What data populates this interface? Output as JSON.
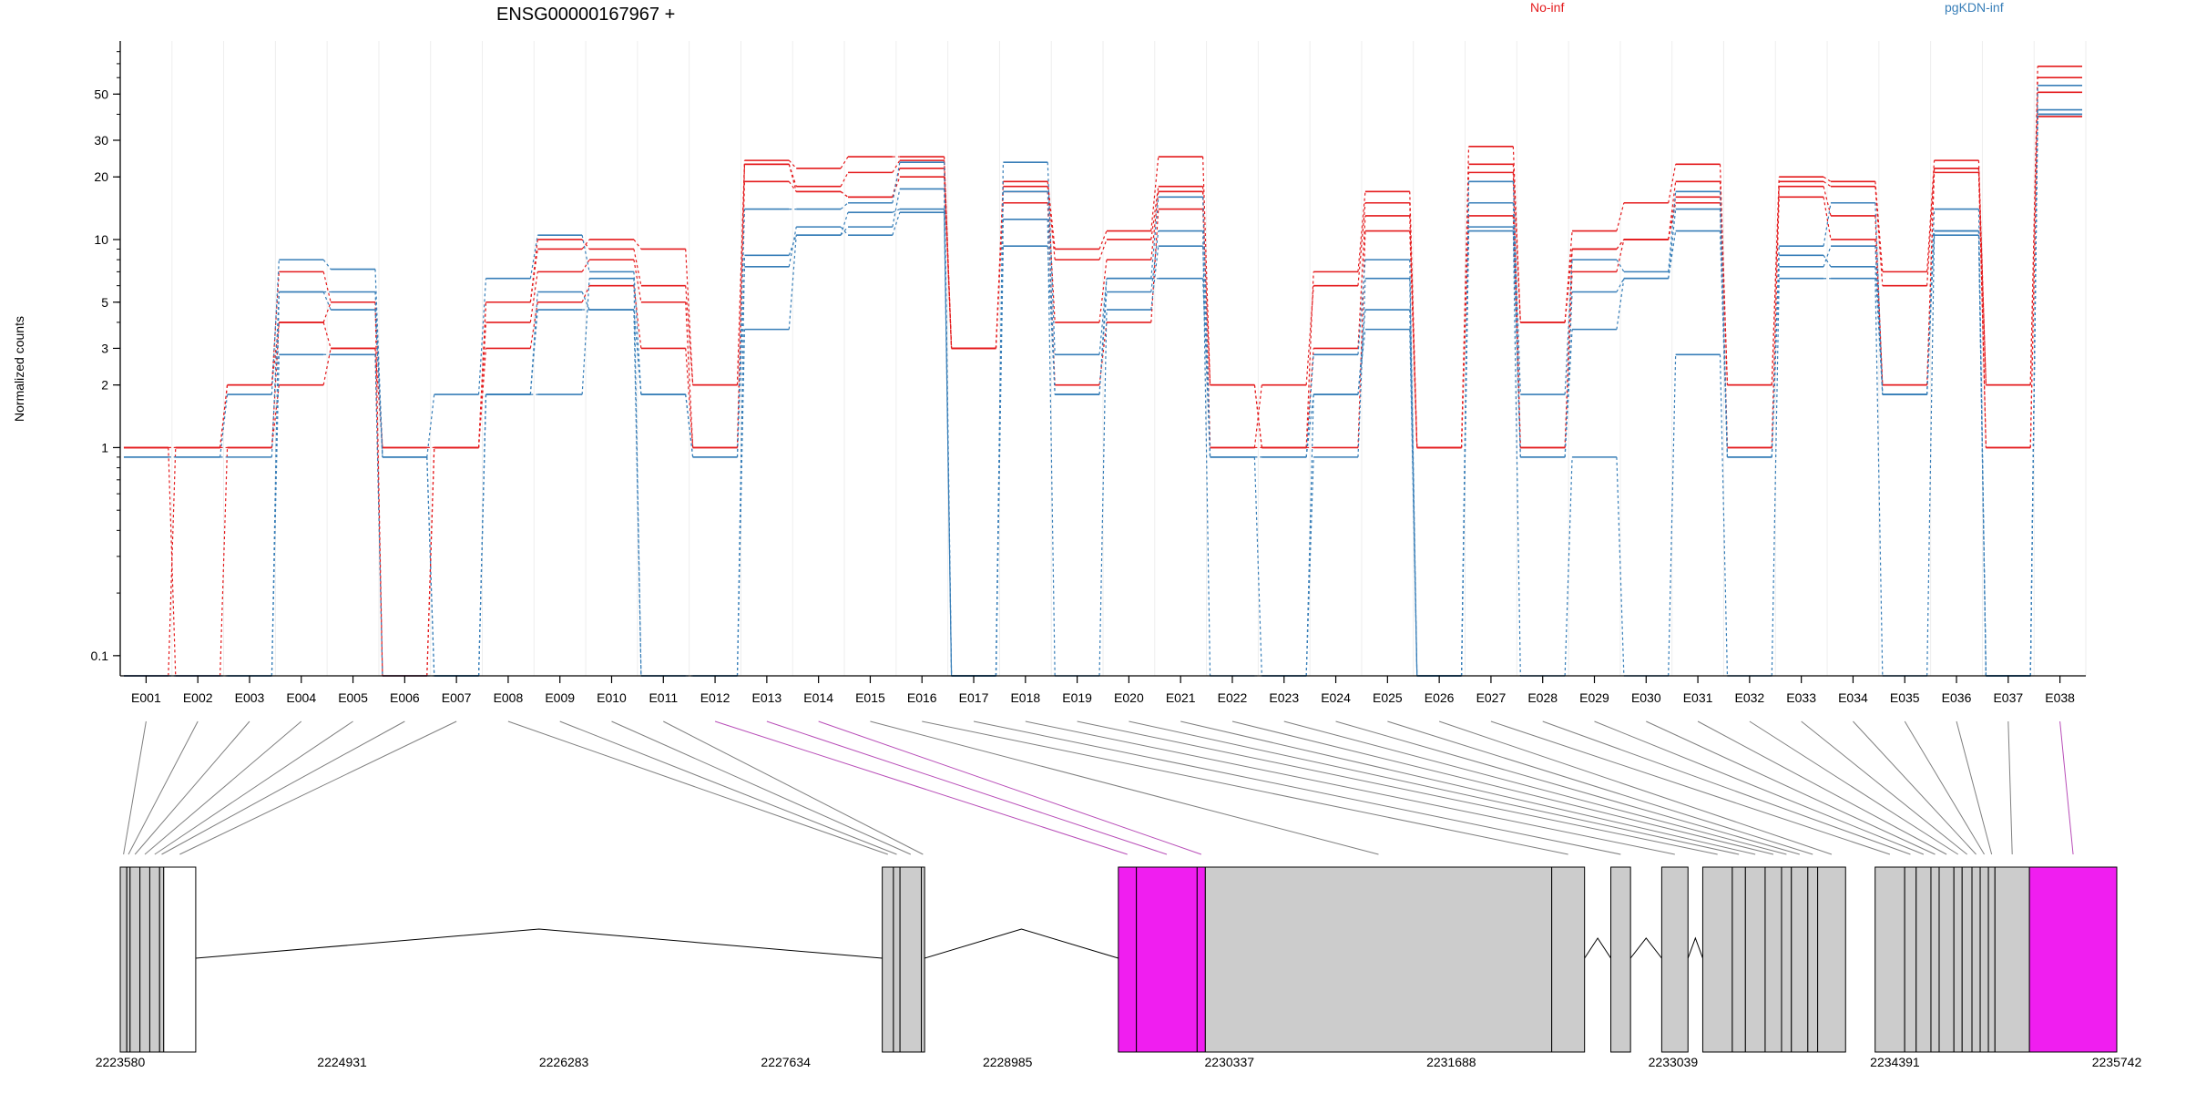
{
  "chart_data": {
    "type": "line",
    "title": "ENSG00000167967 +",
    "ylabel": "Normalized counts",
    "xlabel": "",
    "y_scale": "log",
    "ylim": [
      0.08,
      90
    ],
    "y_ticks": [
      0.1,
      1,
      2,
      3,
      5,
      10,
      20,
      30,
      50
    ],
    "y_tick_labels": [
      "0.1",
      "1",
      "2",
      "3",
      "5",
      "10",
      "20",
      "30",
      "50"
    ],
    "grid": true,
    "legend": [
      {
        "label": "No-inf",
        "color": "#e41a1c"
      },
      {
        "label": "pgKDN-inf",
        "color": "#377eb8"
      }
    ],
    "categories": [
      "E001",
      "E002",
      "E003",
      "E004",
      "E005",
      "E006",
      "E007",
      "E008",
      "E009",
      "E010",
      "E011",
      "E012",
      "E013",
      "E014",
      "E015",
      "E016",
      "E017",
      "E018",
      "E019",
      "E020",
      "E021",
      "E022",
      "E023",
      "E024",
      "E025",
      "E026",
      "E027",
      "E028",
      "E029",
      "E030",
      "E031",
      "E032",
      "E033",
      "E034",
      "E035",
      "E036",
      "E037",
      "E038"
    ],
    "series": [
      {
        "group": "No-inf",
        "color": "#e41a1c",
        "values": [
          1,
          1,
          2,
          7,
          5,
          1,
          1,
          5,
          9,
          10,
          9,
          2,
          24,
          22,
          25,
          25,
          3,
          19,
          9,
          11,
          25,
          2,
          1,
          7,
          17,
          1,
          28,
          4,
          11,
          15,
          23,
          2,
          20,
          19,
          7,
          24,
          2,
          68
        ]
      },
      {
        "group": "No-inf",
        "color": "#e41a1c",
        "values": [
          0.08,
          1,
          2,
          4,
          5,
          0.08,
          1,
          5,
          10,
          9,
          6,
          2,
          23,
          18,
          21,
          24,
          3,
          18,
          8,
          10,
          18,
          1,
          2,
          6,
          15,
          1,
          23,
          4,
          9,
          10,
          19,
          2,
          19,
          18,
          6,
          22,
          2,
          60
        ]
      },
      {
        "group": "No-inf",
        "color": "#e41a1c",
        "values": [
          1,
          0.08,
          1,
          4,
          3,
          0.08,
          1,
          4,
          7,
          8,
          5,
          1,
          19,
          17,
          16,
          20,
          3,
          17,
          4,
          8,
          17,
          1,
          1,
          3,
          13,
          1,
          21,
          1,
          7,
          10,
          16,
          1,
          18,
          13,
          2,
          21,
          1,
          51
        ]
      },
      {
        "group": "No-inf",
        "color": "#e41a1c",
        "values": [
          1,
          1,
          1,
          2,
          3,
          1,
          1,
          3,
          5,
          6,
          3,
          1,
          23,
          17,
          16,
          22,
          3,
          15,
          2,
          4,
          14,
          2,
          1,
          1,
          11,
          1,
          13,
          1,
          9,
          10,
          15,
          1,
          16,
          10,
          2,
          22,
          1,
          39
        ]
      },
      {
        "group": "pgKDN-inf",
        "color": "#377eb8",
        "values": [
          0.9,
          0.9,
          1.8,
          8,
          7.2,
          0.9,
          1.8,
          6.5,
          10.5,
          7,
          1.8,
          0.9,
          14,
          14,
          15,
          23.5,
          0.08,
          23.5,
          2.8,
          6.5,
          16,
          0.9,
          0.9,
          2.8,
          8,
          0.08,
          19,
          1.8,
          8,
          7,
          17,
          0.9,
          9.3,
          15,
          1.8,
          14,
          0.08,
          55
        ]
      },
      {
        "group": "pgKDN-inf",
        "color": "#377eb8",
        "values": [
          0.08,
          0.08,
          0.08,
          2.8,
          2.8,
          0.08,
          0.08,
          1.8,
          1.8,
          6.5,
          0.08,
          0.08,
          3.7,
          10.5,
          11.5,
          17.5,
          0.08,
          17,
          1.8,
          5.6,
          11,
          0.08,
          0.08,
          0.9,
          6.5,
          0.08,
          11.5,
          0.08,
          0.9,
          0.08,
          2.8,
          0.08,
          6.5,
          6.5,
          0.08,
          10.5,
          0.08,
          42
        ]
      },
      {
        "group": "pgKDN-inf",
        "color": "#377eb8",
        "values": [
          0.9,
          0.9,
          0.9,
          5.6,
          5.6,
          0.9,
          0.08,
          1.8,
          5.6,
          4.6,
          1.8,
          0.9,
          7.4,
          11.5,
          10.5,
          13.5,
          0.08,
          12.5,
          0.08,
          4.6,
          9.3,
          0.9,
          0.9,
          1.8,
          4.6,
          0.08,
          15,
          0.9,
          3.7,
          6.5,
          14,
          0.9,
          8.4,
          7.4,
          1.8,
          11,
          0.08,
          40
        ]
      },
      {
        "group": "pgKDN-inf",
        "color": "#377eb8",
        "values": [
          0.08,
          0.08,
          0.08,
          5.6,
          4.6,
          0.9,
          0.08,
          1.8,
          4.6,
          4.6,
          0.08,
          0.08,
          8.4,
          10.5,
          13.5,
          14,
          0.08,
          9.3,
          1.8,
          6.5,
          6.5,
          0.9,
          0.08,
          1.8,
          3.7,
          0.08,
          11,
          0.9,
          5.6,
          6.5,
          11,
          0.9,
          7.4,
          9.3,
          1.8,
          11,
          0.08,
          40
        ]
      }
    ],
    "gene_model": {
      "x_ticks": [
        "2223580",
        "2224931",
        "2226283",
        "2227634",
        "2228985",
        "2230337",
        "2231688",
        "2233039",
        "2234391",
        "2235742"
      ],
      "x_range": [
        2223580,
        2235742
      ],
      "highlight_color": "#f01ef0",
      "exon_color": "#cccccc",
      "highlighted_exons": [
        "E012",
        "E013",
        "E014",
        "E038"
      ]
    }
  }
}
